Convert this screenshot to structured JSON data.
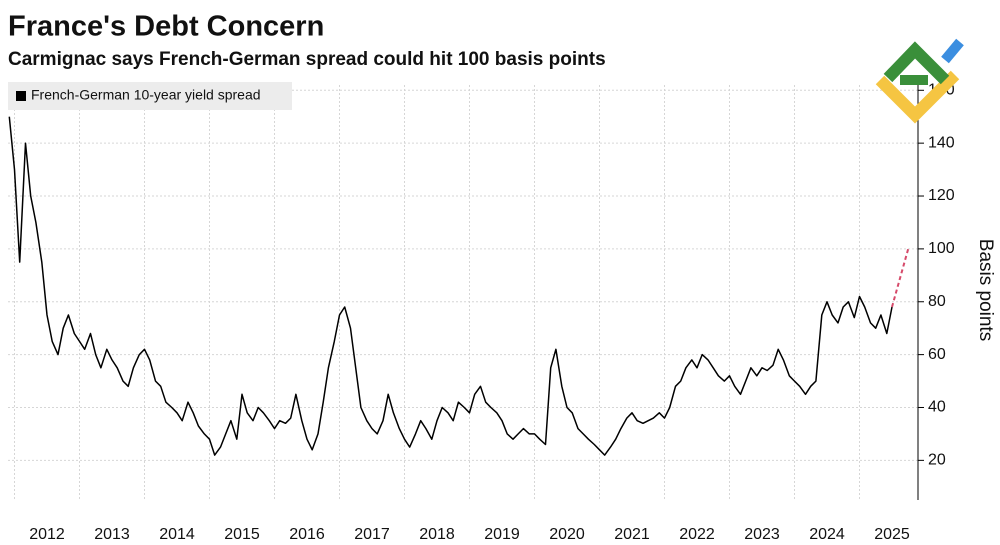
{
  "chart_data": {
    "type": "line",
    "title": "France's Debt Concern",
    "subtitle": "Carmignac says French-German spread could hit 100 basis points",
    "y_label": "Basis points",
    "xlim": [
      2011.9,
      2025.9
    ],
    "xticks": [
      2012,
      2013,
      2014,
      2015,
      2016,
      2017,
      2018,
      2019,
      2020,
      2021,
      2022,
      2023,
      2024,
      2025
    ],
    "ylim": [
      5,
      162
    ],
    "yticks": [
      20,
      40,
      60,
      80,
      100,
      120,
      140,
      160
    ],
    "grid": true,
    "legend": "top-left",
    "series": [
      {
        "name": "French-German 10-year yield spread",
        "color": "#000000",
        "x": [
          2011.92,
          2012.0,
          2012.08,
          2012.17,
          2012.25,
          2012.33,
          2012.42,
          2012.5,
          2012.58,
          2012.67,
          2012.75,
          2012.83,
          2012.92,
          2013.0,
          2013.08,
          2013.17,
          2013.25,
          2013.33,
          2013.42,
          2013.5,
          2013.58,
          2013.67,
          2013.75,
          2013.83,
          2013.92,
          2014.0,
          2014.08,
          2014.17,
          2014.25,
          2014.33,
          2014.42,
          2014.5,
          2014.58,
          2014.67,
          2014.75,
          2014.83,
          2014.92,
          2015.0,
          2015.08,
          2015.17,
          2015.25,
          2015.33,
          2015.42,
          2015.5,
          2015.58,
          2015.67,
          2015.75,
          2015.83,
          2015.92,
          2016.0,
          2016.08,
          2016.17,
          2016.25,
          2016.33,
          2016.42,
          2016.5,
          2016.58,
          2016.67,
          2016.75,
          2016.83,
          2016.92,
          2017.0,
          2017.08,
          2017.17,
          2017.25,
          2017.33,
          2017.42,
          2017.5,
          2017.58,
          2017.67,
          2017.75,
          2017.83,
          2017.92,
          2018.0,
          2018.08,
          2018.17,
          2018.25,
          2018.33,
          2018.42,
          2018.5,
          2018.58,
          2018.67,
          2018.75,
          2018.83,
          2018.92,
          2019.0,
          2019.08,
          2019.17,
          2019.25,
          2019.33,
          2019.42,
          2019.5,
          2019.58,
          2019.67,
          2019.75,
          2019.83,
          2019.92,
          2020.0,
          2020.08,
          2020.17,
          2020.25,
          2020.33,
          2020.42,
          2020.5,
          2020.58,
          2020.67,
          2020.75,
          2020.83,
          2020.92,
          2021.0,
          2021.08,
          2021.17,
          2021.25,
          2021.33,
          2021.42,
          2021.5,
          2021.58,
          2021.67,
          2021.75,
          2021.83,
          2021.92,
          2022.0,
          2022.08,
          2022.17,
          2022.25,
          2022.33,
          2022.42,
          2022.5,
          2022.58,
          2022.67,
          2022.75,
          2022.83,
          2022.92,
          2023.0,
          2023.08,
          2023.17,
          2023.25,
          2023.33,
          2023.42,
          2023.5,
          2023.58,
          2023.67,
          2023.75,
          2023.83,
          2023.92,
          2024.0,
          2024.08,
          2024.17,
          2024.25,
          2024.33,
          2024.42,
          2024.5,
          2024.58,
          2024.67,
          2024.75,
          2024.83,
          2024.92,
          2025.0,
          2025.08,
          2025.17,
          2025.25,
          2025.33,
          2025.42,
          2025.5
        ],
        "values": [
          150,
          130,
          95,
          140,
          120,
          110,
          95,
          75,
          65,
          60,
          70,
          75,
          68,
          65,
          62,
          68,
          60,
          55,
          62,
          58,
          55,
          50,
          48,
          55,
          60,
          62,
          58,
          50,
          48,
          42,
          40,
          38,
          35,
          42,
          38,
          33,
          30,
          28,
          22,
          25,
          30,
          35,
          28,
          45,
          38,
          35,
          40,
          38,
          35,
          32,
          35,
          34,
          36,
          45,
          35,
          28,
          24,
          30,
          42,
          55,
          65,
          75,
          78,
          70,
          55,
          40,
          35,
          32,
          30,
          35,
          45,
          38,
          32,
          28,
          25,
          30,
          35,
          32,
          28,
          35,
          40,
          38,
          35,
          42,
          40,
          38,
          45,
          48,
          42,
          40,
          38,
          35,
          30,
          28,
          30,
          32,
          30,
          30,
          28,
          26,
          55,
          62,
          48,
          40,
          38,
          32,
          30,
          28,
          26,
          24,
          22,
          25,
          28,
          32,
          36,
          38,
          35,
          34,
          35,
          36,
          38,
          36,
          40,
          48,
          50,
          55,
          58,
          55,
          60,
          58,
          55,
          52,
          50,
          52,
          48,
          45,
          50,
          55,
          52,
          55,
          54,
          56,
          62,
          58,
          52,
          50,
          48,
          45,
          48,
          50,
          75,
          80,
          75,
          72,
          78,
          80,
          74,
          82,
          78,
          72,
          70,
          75,
          68,
          78
        ]
      },
      {
        "color": "#d64a6a",
        "dashed": true,
        "x": [
          2025.5,
          2025.75
        ],
        "values": [
          78,
          100
        ]
      }
    ]
  }
}
